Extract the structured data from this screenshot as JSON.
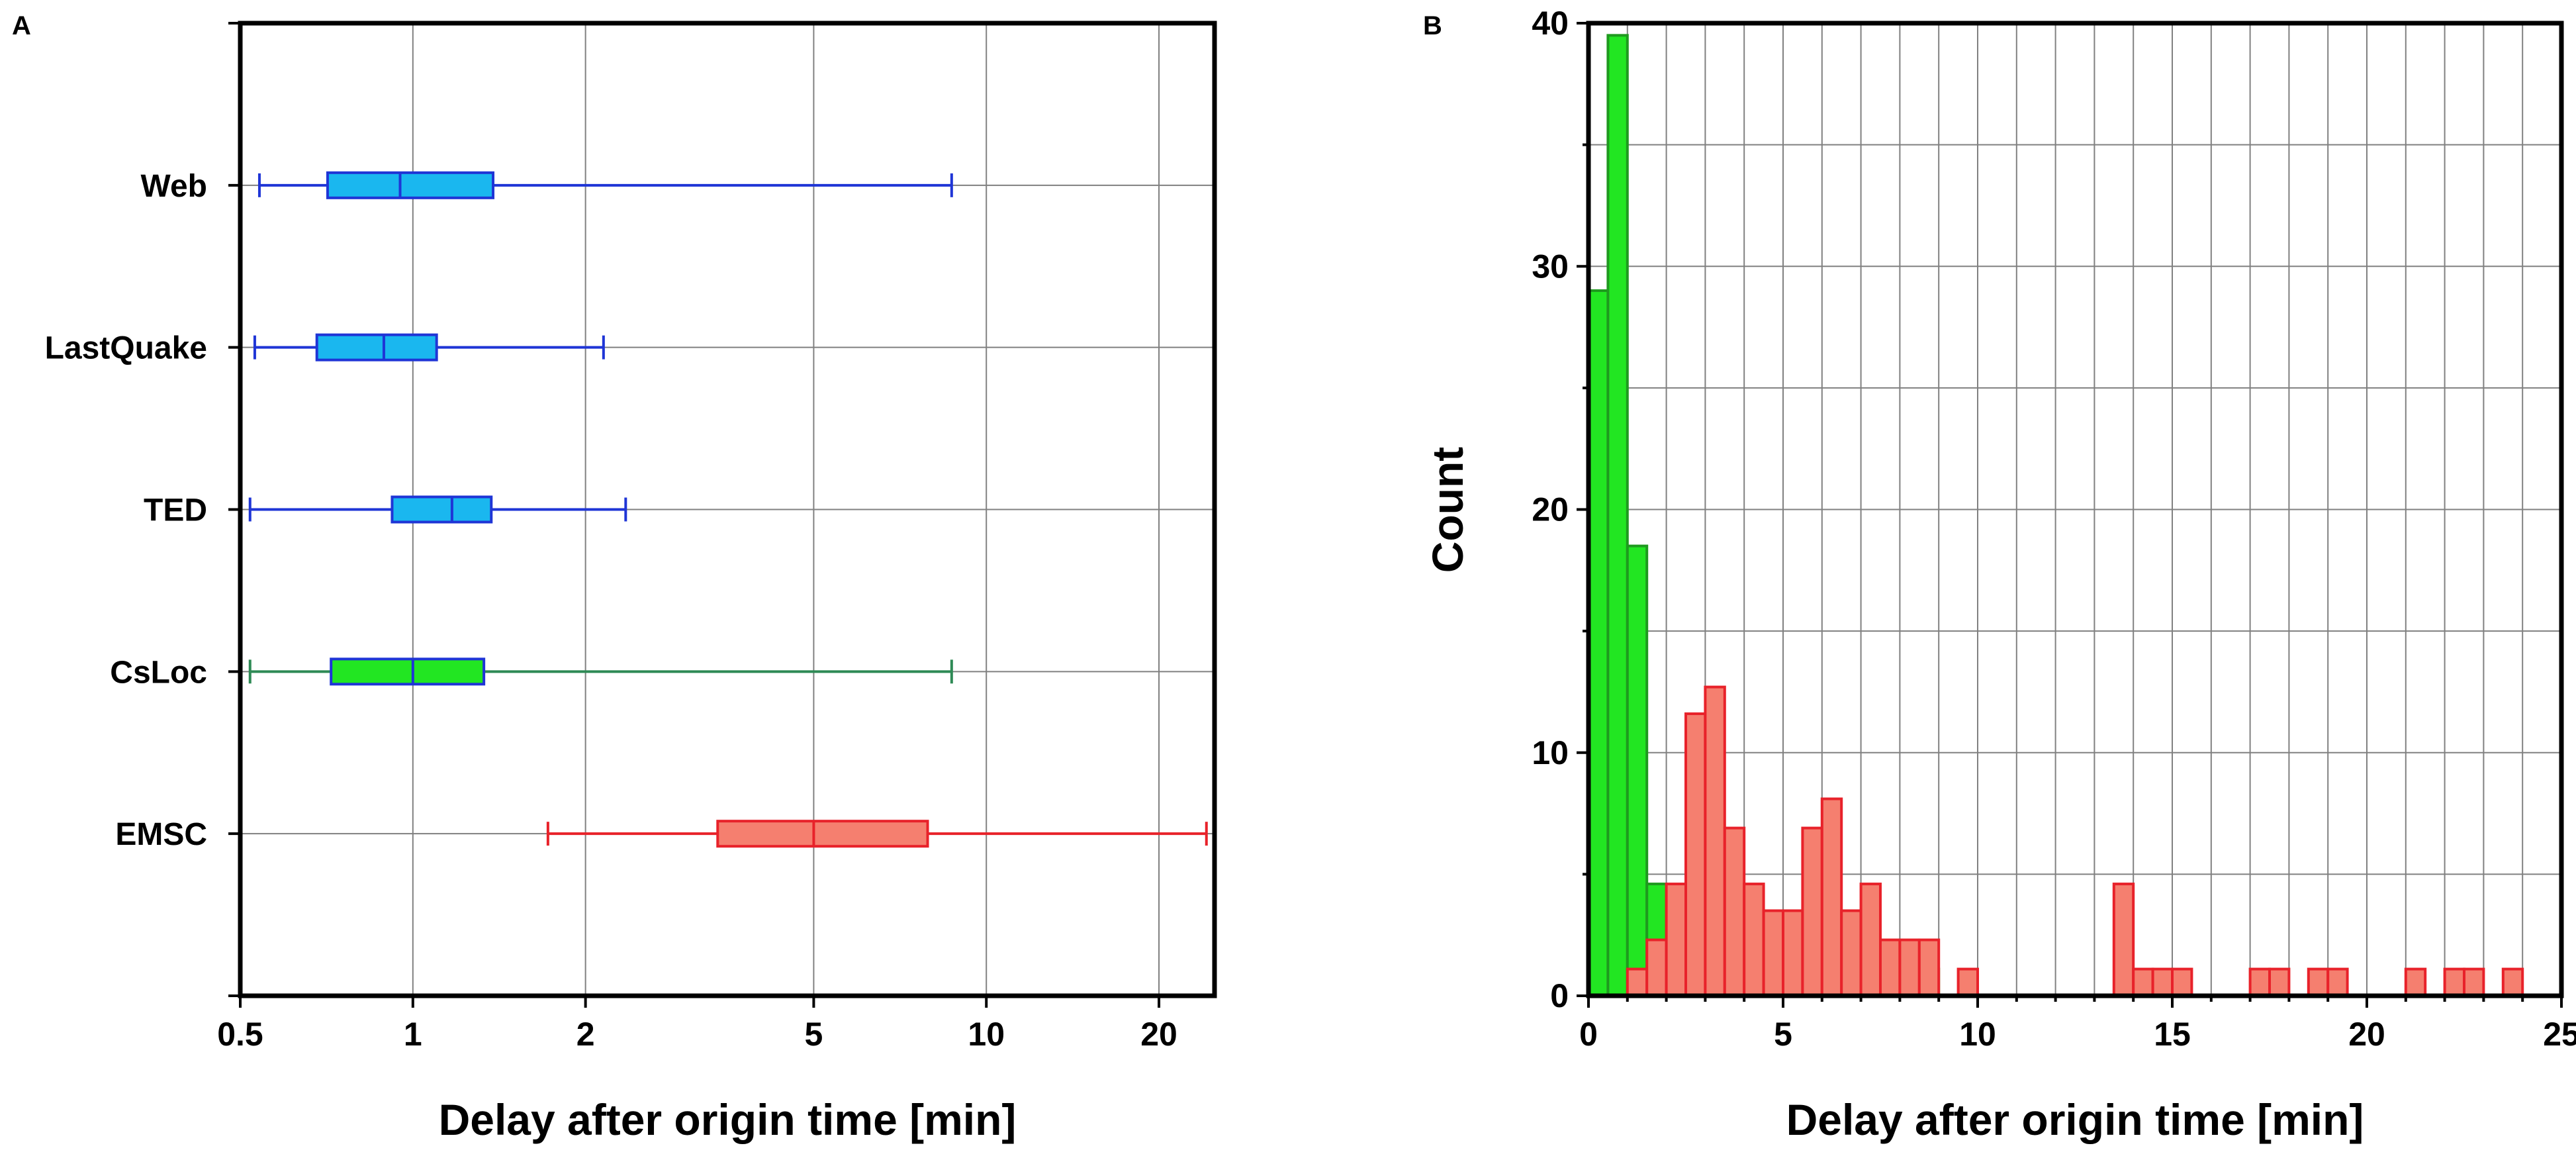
{
  "panels": {
    "a_label": "A",
    "b_label": "B"
  },
  "colors": {
    "cyan_fill": "#1ab7ef",
    "blue_line": "#1f35d6",
    "green_fill": "#22e622",
    "green_line": "#2e8a55",
    "green_edge": "#1f9a1f",
    "red_fill": "#f57f6f",
    "red_line": "#e8222a",
    "grid": "#808080",
    "frame": "#000000"
  },
  "chart_data": [
    {
      "type": "boxplot",
      "panel": "A",
      "orientation": "horizontal",
      "xlabel": "Delay after origin time [min]",
      "xscale": "log",
      "xlim": [
        0.5,
        25
      ],
      "xticks": [
        0.5,
        1,
        2,
        5,
        10,
        20
      ],
      "xtick_labels": [
        "0.5",
        "1",
        "2",
        "5",
        "10",
        "20"
      ],
      "grid": true,
      "categories": [
        "Web",
        "LastQuake",
        "TED",
        "CsLoc",
        "EMSC"
      ],
      "boxes": [
        {
          "name": "Web",
          "min": 0.54,
          "q1": 0.71,
          "median": 0.95,
          "q3": 1.38,
          "max": 8.7,
          "color": "cyan"
        },
        {
          "name": "LastQuake",
          "min": 0.53,
          "q1": 0.68,
          "median": 0.89,
          "q3": 1.1,
          "max": 2.15,
          "color": "cyan"
        },
        {
          "name": "TED",
          "min": 0.52,
          "q1": 0.92,
          "median": 1.17,
          "q3": 1.37,
          "max": 2.35,
          "color": "cyan"
        },
        {
          "name": "CsLoc",
          "min": 0.52,
          "q1": 0.72,
          "median": 1.0,
          "q3": 1.33,
          "max": 8.7,
          "color": "green"
        },
        {
          "name": "EMSC",
          "min": 1.72,
          "q1": 3.4,
          "median": 5.0,
          "q3": 7.9,
          "max": 24.2,
          "color": "red"
        }
      ]
    },
    {
      "type": "histogram",
      "panel": "B",
      "xlabel": "Delay after origin time [min]",
      "ylabel": "Count",
      "xlim": [
        0,
        25
      ],
      "ylim": [
        0,
        40
      ],
      "xticks": [
        0,
        5,
        10,
        15,
        20,
        25
      ],
      "yticks": [
        0,
        10,
        20,
        30,
        40
      ],
      "bin_width": 0.5,
      "grid": true,
      "series": [
        {
          "color": "green",
          "bins": [
            [
              0.25,
              29
            ],
            [
              0.75,
              39.5
            ],
            [
              1.25,
              18.5
            ],
            [
              1.75,
              4.6
            ],
            [
              2.25,
              3.5
            ],
            [
              2.75,
              1.1
            ],
            [
              4.25,
              1.1
            ],
            [
              6.75,
              1.1
            ],
            [
              8.75,
              1.1
            ]
          ]
        },
        {
          "color": "red",
          "bins": [
            [
              1.25,
              1.1
            ],
            [
              1.75,
              2.3
            ],
            [
              2.25,
              4.6
            ],
            [
              2.75,
              11.6
            ],
            [
              3.25,
              12.7
            ],
            [
              3.75,
              6.9
            ],
            [
              4.25,
              4.6
            ],
            [
              4.75,
              3.5
            ],
            [
              5.25,
              3.5
            ],
            [
              5.75,
              6.9
            ],
            [
              6.25,
              8.1
            ],
            [
              6.75,
              3.5
            ],
            [
              7.25,
              4.6
            ],
            [
              7.75,
              2.3
            ],
            [
              8.25,
              2.3
            ],
            [
              8.75,
              2.3
            ],
            [
              9.75,
              1.1
            ],
            [
              13.75,
              4.6
            ],
            [
              14.25,
              1.1
            ],
            [
              14.75,
              1.1
            ],
            [
              15.25,
              1.1
            ],
            [
              17.25,
              1.1
            ],
            [
              17.75,
              1.1
            ],
            [
              18.75,
              1.1
            ],
            [
              19.25,
              1.1
            ],
            [
              21.25,
              1.1
            ],
            [
              22.25,
              1.1
            ],
            [
              22.75,
              1.1
            ],
            [
              23.75,
              1.1
            ]
          ]
        }
      ]
    }
  ]
}
